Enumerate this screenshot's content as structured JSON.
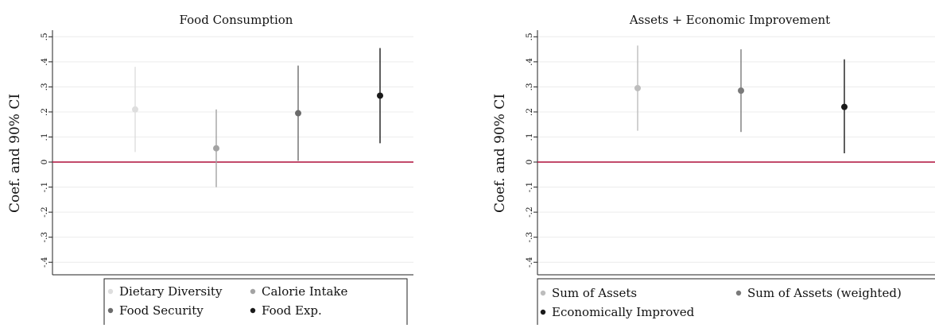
{
  "chart_data": [
    {
      "type": "scatter",
      "title": "Food Consumption",
      "ylabel": "Coef. and 90% CI",
      "xlabel": "",
      "ylim": [
        -0.45,
        0.52
      ],
      "yticks": [
        -0.4,
        -0.3,
        -0.2,
        -0.1,
        0,
        0.1,
        0.2,
        0.3,
        0.4,
        0.5
      ],
      "yticklabels": [
        "-.4",
        "-.3",
        "-.2",
        "-.1",
        "0",
        ".1",
        ".2",
        ".3",
        ".4",
        ".5"
      ],
      "grid": true,
      "reference_line": 0,
      "reference_line_color": "#b5204a",
      "legend": "bottom",
      "series": [
        {
          "name": "Dietary Diversity",
          "x": 1,
          "estimate": 0.21,
          "ci_low": 0.04,
          "ci_high": 0.38,
          "color": "#dedede"
        },
        {
          "name": "Calorie Intake",
          "x": 2,
          "estimate": 0.055,
          "ci_low": -0.1,
          "ci_high": 0.21,
          "color": "#a3a3a3"
        },
        {
          "name": "Food Security",
          "x": 3,
          "estimate": 0.195,
          "ci_low": 0.005,
          "ci_high": 0.385,
          "color": "#6b6b6b"
        },
        {
          "name": "Food Exp.",
          "x": 4,
          "estimate": 0.265,
          "ci_low": 0.075,
          "ci_high": 0.455,
          "color": "#1a1a1a"
        }
      ]
    },
    {
      "type": "scatter",
      "title": "Assets + Economic Improvement",
      "ylabel": "Coef. and 90% CI",
      "xlabel": "",
      "ylim": [
        -0.45,
        0.52
      ],
      "yticks": [
        -0.4,
        -0.3,
        -0.2,
        -0.1,
        0,
        0.1,
        0.2,
        0.3,
        0.4,
        0.5
      ],
      "yticklabels": [
        "-.4",
        "-.3",
        "-.2",
        "-.1",
        "0",
        ".1",
        ".2",
        ".3",
        ".4",
        ".5"
      ],
      "grid": true,
      "reference_line": 0,
      "reference_line_color": "#b5204a",
      "legend": "bottom",
      "series": [
        {
          "name": "Sum of Assets",
          "x": 1,
          "estimate": 0.295,
          "ci_low": 0.125,
          "ci_high": 0.465,
          "color": "#bdbdbd"
        },
        {
          "name": "Sum of Assets (weighted)",
          "x": 2,
          "estimate": 0.285,
          "ci_low": 0.12,
          "ci_high": 0.45,
          "color": "#7a7a7a"
        },
        {
          "name": "Economically Improved",
          "x": 3,
          "estimate": 0.22,
          "ci_low": 0.035,
          "ci_high": 0.41,
          "color": "#1a1a1a"
        }
      ]
    }
  ]
}
